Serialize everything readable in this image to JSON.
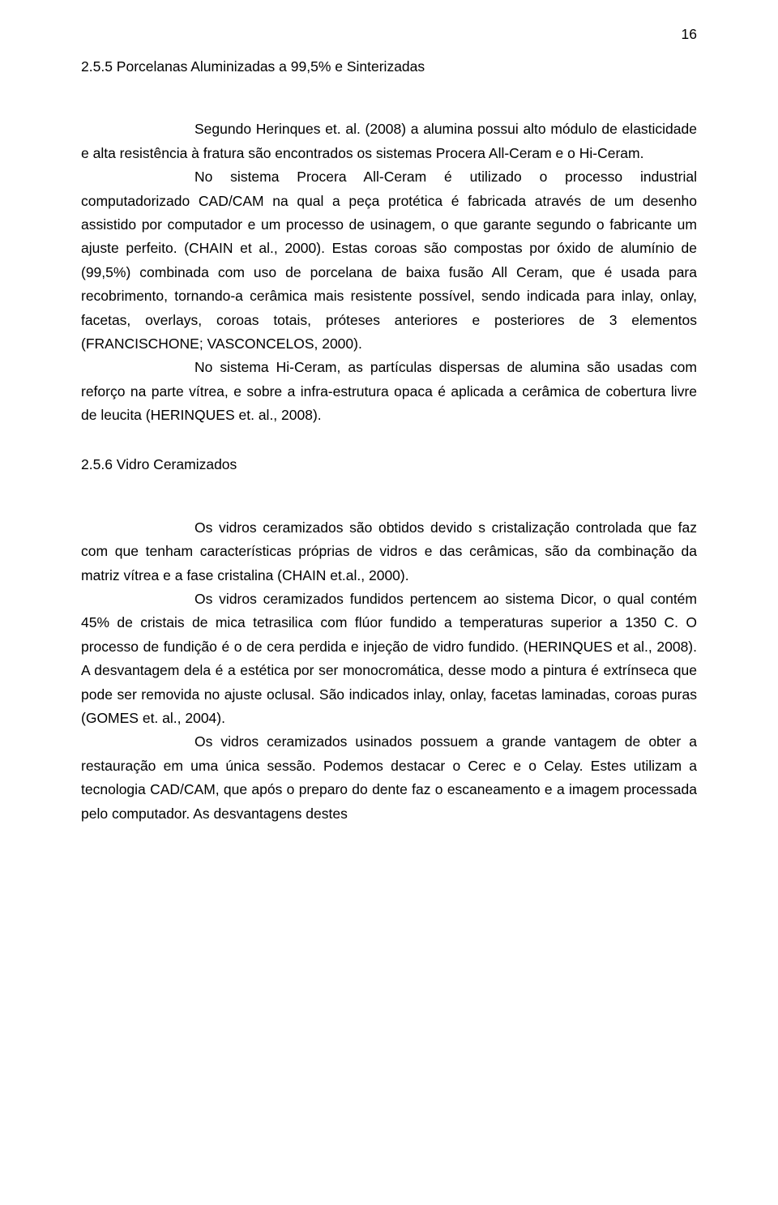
{
  "page_number": "16",
  "heading_1": "2.5.5 Porcelanas Aluminizadas a 99,5% e Sinterizadas",
  "para_1": "Segundo Herinques et. al. (2008) a alumina possui alto módulo de elasticidade e alta resistência à fratura são encontrados os sistemas Procera All-Ceram e o Hi-Ceram.",
  "para_2": "No sistema Procera All-Ceram é utilizado o processo industrial computadorizado CAD/CAM na qual a peça protética é fabricada através de um desenho assistido por computador e um processo de usinagem, o que garante segundo o fabricante um ajuste perfeito. (CHAIN et al., 2000). Estas coroas são compostas por óxido de alumínio de (99,5%) combinada com uso de porcelana de baixa fusão All Ceram, que é usada para recobrimento, tornando-a cerâmica mais resistente possível, sendo indicada para inlay, onlay, facetas, overlays, coroas totais, próteses anteriores e posteriores de 3 elementos (FRANCISCHONE; VASCONCELOS, 2000).",
  "para_3": "No sistema Hi-Ceram, as partículas dispersas de alumina são usadas com reforço na parte vítrea, e sobre a infra-estrutura opaca é aplicada a cerâmica de cobertura livre de leucita (HERINQUES et. al., 2008).",
  "heading_2": "2.5.6 Vidro Ceramizados",
  "para_4": "Os vidros ceramizados são obtidos devido s cristalização controlada que faz com que tenham características próprias de vidros e das cerâmicas, são da combinação da matriz vítrea e a fase cristalina (CHAIN et.al., 2000).",
  "para_5": "Os vidros ceramizados fundidos pertencem ao sistema Dicor, o qual contém 45% de cristais de mica tetrasilica com flúor fundido a temperaturas superior a 1350 C. O processo de fundição é o de cera perdida e injeção de vidro fundido. (HERINQUES et al., 2008). A desvantagem dela é a estética por ser monocromática, desse modo a pintura é extrínseca que pode ser removida no ajuste oclusal. São indicados inlay, onlay, facetas laminadas, coroas puras (GOMES et. al., 2004).",
  "para_6": "Os vidros ceramizados usinados possuem a grande vantagem de obter a restauração em uma única sessão. Podemos destacar o Cerec e o Celay. Estes utilizam a tecnologia CAD/CAM, que após o preparo do dente faz o escaneamento e a imagem processada pelo computador. As desvantagens destes"
}
